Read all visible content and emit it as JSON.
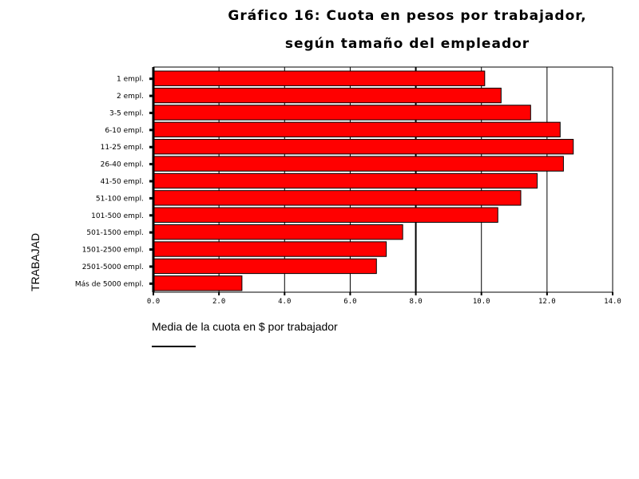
{
  "chart_data": {
    "type": "bar",
    "orientation": "horizontal",
    "title": "Gráfico 16: Cuota en pesos por trabajador,",
    "subtitle": "según tamaño del empleador",
    "xlabel": "Media de la cuota en $ por trabajador",
    "ylabel": "TRABAJAD",
    "xlim": [
      0,
      14
    ],
    "xticks": [
      "0.0",
      "2.0",
      "4.0",
      "6.0",
      "8.0",
      "10.0",
      "12.0",
      "14.0"
    ],
    "grid": true,
    "bar_color": "#ff0000",
    "categories": [
      "1 empl.",
      "2 empl.",
      "3-5 empl.",
      "6-10 empl.",
      "11-25 empl.",
      "26-40 empl.",
      "41-50 empl.",
      "51-100 empl.",
      "101-500 empl.",
      "501-1500 empl.",
      "1501-2500 empl.",
      "2501-5000 empl.",
      "Más de 5000 empl."
    ],
    "values": [
      10.1,
      10.6,
      11.5,
      12.4,
      12.8,
      12.5,
      11.7,
      11.2,
      10.5,
      7.6,
      7.1,
      6.8,
      2.7
    ]
  }
}
